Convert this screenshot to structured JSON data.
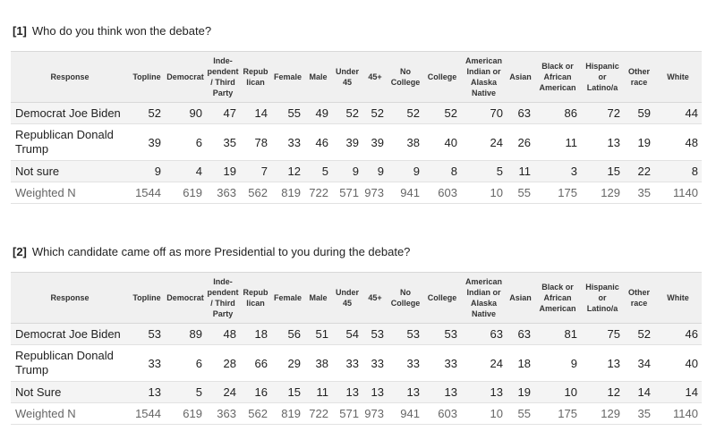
{
  "headers": [
    "Response",
    "Topline",
    "Democrat",
    "Inde-\npendent\n/ Third\nParty",
    "Repub\nlican",
    "Female",
    "Male",
    "Under\n45",
    "45+",
    "No\nCollege",
    "College",
    "American\nIndian or\nAlaska\nNative",
    "Asian",
    "Black or\nAfrican\nAmerican",
    "Hispanic\nor\nLatino/a",
    "Other\nrace",
    "White"
  ],
  "q1": {
    "number": "[1]",
    "text": "Who do you think won the debate?",
    "rows": [
      {
        "label": "Democrat Joe Biden",
        "values": [
          "52",
          "90",
          "47",
          "14",
          "55",
          "49",
          "52",
          "52",
          "52",
          "52",
          "70",
          "63",
          "86",
          "72",
          "59",
          "44"
        ]
      },
      {
        "label": "Republican Donald Trump",
        "values": [
          "39",
          "6",
          "35",
          "78",
          "33",
          "46",
          "39",
          "39",
          "38",
          "40",
          "24",
          "26",
          "11",
          "13",
          "19",
          "48"
        ]
      },
      {
        "label": "Not sure",
        "values": [
          "9",
          "4",
          "19",
          "7",
          "12",
          "5",
          "9",
          "9",
          "9",
          "8",
          "5",
          "11",
          "3",
          "15",
          "22",
          "8"
        ]
      },
      {
        "label": "Weighted N",
        "values": [
          "1544",
          "619",
          "363",
          "562",
          "819",
          "722",
          "571",
          "973",
          "941",
          "603",
          "10",
          "55",
          "175",
          "129",
          "35",
          "1140"
        ]
      }
    ]
  },
  "q2": {
    "number": "[2]",
    "text": "Which candidate came off as more Presidential to you during the debate?",
    "rows": [
      {
        "label": "Democrat Joe Biden",
        "values": [
          "53",
          "89",
          "48",
          "18",
          "56",
          "51",
          "54",
          "53",
          "53",
          "53",
          "63",
          "63",
          "81",
          "75",
          "52",
          "46"
        ]
      },
      {
        "label": "Republican Donald Trump",
        "values": [
          "33",
          "6",
          "28",
          "66",
          "29",
          "38",
          "33",
          "33",
          "33",
          "33",
          "24",
          "18",
          "9",
          "13",
          "34",
          "40"
        ]
      },
      {
        "label": "Not Sure",
        "values": [
          "13",
          "5",
          "24",
          "16",
          "15",
          "11",
          "13",
          "13",
          "13",
          "13",
          "13",
          "19",
          "10",
          "12",
          "14",
          "14"
        ]
      },
      {
        "label": "Weighted N",
        "values": [
          "1544",
          "619",
          "363",
          "562",
          "819",
          "722",
          "571",
          "973",
          "941",
          "603",
          "10",
          "55",
          "175",
          "129",
          "35",
          "1140"
        ]
      }
    ]
  }
}
